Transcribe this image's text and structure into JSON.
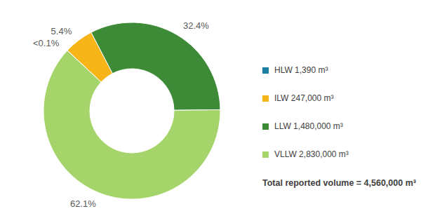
{
  "chart_data": {
    "type": "donut",
    "categories": [
      "HLW 1,390 m³",
      "ILW 247,000 m³",
      "LLW 1,480,000 m³",
      "VLLW 2,830,000 m³"
    ],
    "values": [
      0.03,
      5.4,
      32.4,
      62.1
    ],
    "value_labels": [
      "<0.1%",
      "5.4%",
      "32.4%",
      "62.1%"
    ],
    "colors": [
      "#1a7fa3",
      "#f7b518",
      "#3d8b37",
      "#a5d46a"
    ],
    "data_labels": true,
    "legend": "right",
    "annotations": [
      "Total reported volume = 4,560,000 m³"
    ]
  }
}
